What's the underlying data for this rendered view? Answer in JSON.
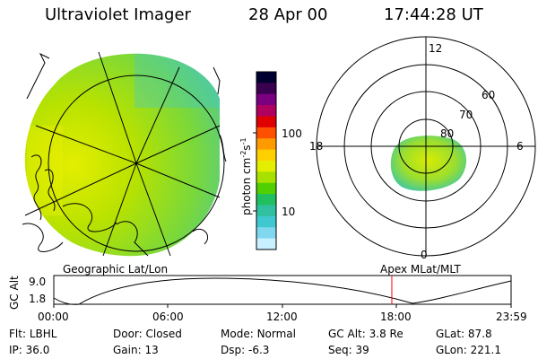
{
  "header": {
    "instrument": "Ultraviolet Imager",
    "date": "28 Apr 00",
    "time": "17:44:28 UT"
  },
  "left_panel": {
    "label": "Geographic Lat/Lon"
  },
  "right_panel": {
    "label": "Apex MLat/MLT",
    "mlt_labels": [
      "12",
      "18",
      "6",
      "0"
    ],
    "lat_labels": [
      "60",
      "70",
      "80"
    ]
  },
  "colorbar": {
    "unit_label": "photon cm",
    "unit_exp1": "-2",
    "unit_s": "s",
    "unit_exp2": "-1",
    "ticks": [
      "100",
      "10"
    ],
    "colors": [
      "#000030",
      "#3a0050",
      "#7a0080",
      "#b00060",
      "#e00000",
      "#ff5000",
      "#ff9a00",
      "#ffd000",
      "#e4ee00",
      "#a8e000",
      "#50d000",
      "#20c060",
      "#30c0a0",
      "#40c8d0",
      "#80d8f0",
      "#c8f0ff"
    ]
  },
  "altitude_plot": {
    "axis_label": "GC Alt",
    "y_ticks": [
      "9.0",
      "1.8"
    ],
    "x_ticks": [
      "00:00",
      "06:00",
      "12:00",
      "18:00",
      "23:59"
    ],
    "current_marker_hour": 17.74,
    "marker_color": "#ff0000"
  },
  "params": {
    "row1": [
      {
        "label": "Flt:",
        "value": "LBHL"
      },
      {
        "label": "Door:",
        "value": "Closed"
      },
      {
        "label": "Mode:",
        "value": "Normal"
      },
      {
        "label": "GC Alt:",
        "value": "3.8 Re"
      },
      {
        "label": "GLat:",
        "value": "87.8"
      }
    ],
    "row2": [
      {
        "label": "IP:",
        "value": "36.0"
      },
      {
        "label": "Gain:",
        "value": "13"
      },
      {
        "label": "Dsp:",
        "value": "-6.3"
      },
      {
        "label": "Seq:",
        "value": "39"
      },
      {
        "label": "GLon:",
        "value": "221.1"
      }
    ]
  }
}
